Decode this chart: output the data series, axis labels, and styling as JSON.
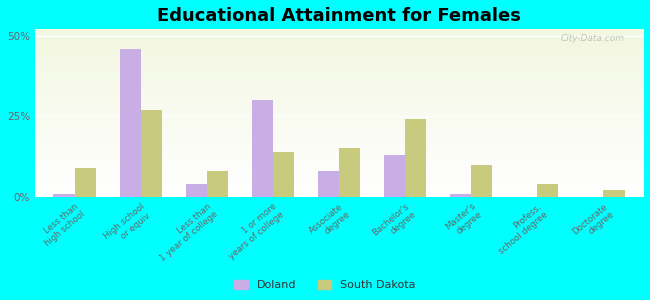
{
  "title": "Educational Attainment for Females",
  "categories": [
    "Less than\nhigh school",
    "High school\nor equiv.",
    "Less than\n1 year of college",
    "1 or more\nyears of college",
    "Associate\ndegree",
    "Bachelor's\ndegree",
    "Master's\ndegree",
    "Profess.\nschool degree",
    "Doctorate\ndegree"
  ],
  "doland_values": [
    1.0,
    46.0,
    4.0,
    30.0,
    8.0,
    13.0,
    1.0,
    0.0,
    0.0
  ],
  "sd_values": [
    9.0,
    27.0,
    8.0,
    14.0,
    15.0,
    24.0,
    10.0,
    4.0,
    2.0
  ],
  "doland_color": "#c9aee5",
  "sd_color": "#c8cb7e",
  "background_color": "#00ffff",
  "plot_bg_color": "#e8efd4",
  "ylabel_ticks": [
    "0%",
    "25%",
    "50%"
  ],
  "yticks": [
    0,
    25,
    50
  ],
  "ylim": [
    0,
    52
  ],
  "bar_width": 0.32,
  "title_fontsize": 13,
  "legend_labels": [
    "Doland",
    "South Dakota"
  ],
  "watermark": "City-Data.com"
}
